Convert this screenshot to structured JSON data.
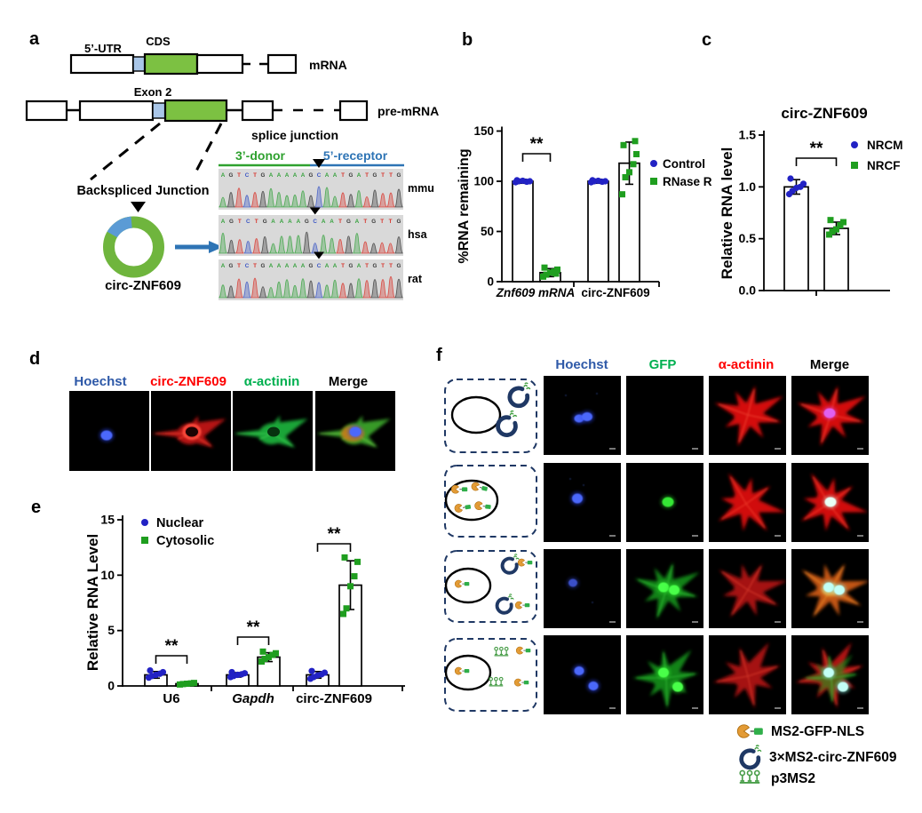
{
  "colors": {
    "accent_blue_point": "#2222c4",
    "accent_green_point": "#1f9e1f",
    "diagram_green": "#7cc142",
    "diagram_lightblue": "#a9c6e8",
    "ring_green": "#6fb53d",
    "ring_blue": "#5b9bd5",
    "arrow_blue": "#2e74b5",
    "hoechst_blue": "#2e59a8",
    "gfp_green": "#00b050",
    "red_channel": "#fe0000",
    "navy_schematic": "#1f3864"
  },
  "panels": {
    "a": {
      "label": "a",
      "mrna_track": {
        "utr": "5’-UTR",
        "cds": "CDS",
        "name": "mRNA"
      },
      "pre_mrna_track": {
        "exon": "Exon 2",
        "name": "pre-mRNA"
      },
      "backspliced": "Backspliced Junction",
      "circle": "circ-ZNF609",
      "chromatogram": {
        "title": "splice junction",
        "donor": "3’-donor",
        "receptor": "5’-receptor",
        "rows": [
          {
            "species": "mmu",
            "left": "AGTCTGAAAAAG",
            "right": "CAATGATGTTG"
          },
          {
            "species": "hsa",
            "left": "AGTCTGAAAAG",
            "right": "CAATGATGTTG"
          },
          {
            "species": "rat",
            "left": "AGTCTGAAAAAG",
            "right": "CAATGATGTTG"
          }
        ],
        "base_colors": {
          "A": "#35a13c",
          "C": "#3a55c4",
          "G": "#3a3a3a",
          "T": "#d8342c"
        }
      }
    },
    "b": {
      "label": "b"
    },
    "c": {
      "label": "c",
      "title": "circ-ZNF609"
    },
    "d": {
      "label": "d",
      "headers": [
        {
          "text": "Hoechst",
          "color": "#2e59a8"
        },
        {
          "text": "circ-ZNF609",
          "color": "#fe0000"
        },
        {
          "text": "α-actinin",
          "color": "#00b050"
        },
        {
          "text": "Merge",
          "color": "#000000"
        }
      ]
    },
    "e": {
      "label": "e"
    },
    "f": {
      "label": "f",
      "headers": [
        {
          "text": "Hoechst",
          "color": "#2e59a8"
        },
        {
          "text": "GFP",
          "color": "#00b050"
        },
        {
          "text": "α-actinin",
          "color": "#fe0000"
        },
        {
          "text": "Merge",
          "color": "#000000"
        }
      ],
      "legend": [
        {
          "icon": "ms2-gfp-nls-icon",
          "text": "MS2-GFP-NLS"
        },
        {
          "icon": "3xms2-circ-znf609-icon",
          "text": "3×MS2-circ-ZNF609"
        },
        {
          "icon": "p3ms2-icon",
          "text": "p3MS2"
        }
      ]
    }
  },
  "chart_data": [
    {
      "id": "b",
      "type": "bar",
      "ylabel": "%RNA remaining",
      "ylim": [
        0,
        150
      ],
      "yticks": [
        "0",
        "50",
        "100",
        "150"
      ],
      "categories": [
        "Znf609 mRNA",
        "circ-ZNF609"
      ],
      "italics": [
        true,
        false
      ],
      "series": [
        {
          "name": "Control",
          "color": "#2222c4",
          "marker": "circle",
          "values": [
            100,
            100
          ]
        },
        {
          "name": "RNase R",
          "color": "#1f9e1f",
          "marker": "square",
          "values": [
            9,
            118
          ]
        }
      ],
      "points": {
        "Control": [
          [
            99,
            100,
            100.5,
            99.5,
            100,
            101
          ],
          [
            99,
            100,
            100.5,
            99.5,
            100,
            101
          ]
        ],
        "RNase R": [
          [
            5,
            7,
            9,
            10,
            12,
            14,
            8
          ],
          [
            87,
            104,
            109,
            117,
            127,
            136,
            140
          ]
        ]
      },
      "errors": {
        "Control": [
          [
            100,
            2
          ],
          [
            100,
            2
          ]
        ],
        "RNase R": [
          [
            9,
            4
          ],
          [
            118,
            21
          ]
        ]
      },
      "sig": [
        {
          "group": 0,
          "label": "**"
        }
      ]
    },
    {
      "id": "c",
      "type": "bar",
      "title": "circ-ZNF609",
      "ylabel": "Relative RNA level",
      "ylim": [
        0,
        1.5
      ],
      "yticks": [
        "0.0",
        "0.5",
        "1.0",
        "1.5"
      ],
      "categories": [],
      "series": [
        {
          "name": "NRCM",
          "color": "#2222c4",
          "marker": "circle",
          "values": [
            1.0
          ]
        },
        {
          "name": "NRCF",
          "color": "#1f9e1f",
          "marker": "square",
          "values": [
            0.6
          ]
        }
      ],
      "points": {
        "NRCM": [
          [
            0.93,
            0.96,
            0.99,
            1.0,
            1.03,
            1.08
          ]
        ],
        "NRCF": [
          [
            0.54,
            0.57,
            0.59,
            0.63,
            0.66,
            0.68
          ]
        ]
      },
      "errors": {
        "NRCM": [
          [
            1.0,
            0.07
          ]
        ],
        "NRCF": [
          [
            0.6,
            0.06
          ]
        ]
      },
      "sig": [
        {
          "group": 0,
          "label": "**"
        }
      ]
    },
    {
      "id": "e",
      "type": "bar",
      "ylabel": "Relative RNA Level",
      "ylim": [
        0,
        15
      ],
      "yticks": [
        "0",
        "5",
        "10",
        "15"
      ],
      "categories": [
        "U6",
        "Gapdh",
        "circ-ZNF609"
      ],
      "italics": [
        false,
        true,
        false
      ],
      "series": [
        {
          "name": "Nuclear",
          "color": "#2222c4",
          "marker": "circle",
          "values": [
            1.0,
            1.0,
            1.0
          ]
        },
        {
          "name": "Cytosolic",
          "color": "#1f9e1f",
          "marker": "square",
          "values": [
            0.2,
            2.6,
            9.1
          ]
        }
      ],
      "points": {
        "Nuclear": [
          [
            0.75,
            0.9,
            1.0,
            1.1,
            1.25,
            1.4
          ],
          [
            0.8,
            0.9,
            1.0,
            1.05,
            1.15,
            1.25
          ],
          [
            0.65,
            0.8,
            0.95,
            1.05,
            1.2,
            1.35
          ]
        ],
        "Cytosolic": [
          [
            0.13,
            0.17,
            0.2,
            0.23,
            0.27
          ],
          [
            2.2,
            2.45,
            2.6,
            2.8,
            2.95,
            3.1
          ],
          [
            6.5,
            7.0,
            9.0,
            9.9,
            11.2,
            11.6
          ]
        ]
      },
      "errors": {
        "Nuclear": [
          [
            1.0,
            0.3
          ],
          [
            1.0,
            0.2
          ],
          [
            1.0,
            0.3
          ]
        ],
        "Cytosolic": [
          [
            0.2,
            0.06
          ],
          [
            2.6,
            0.4
          ],
          [
            9.1,
            2.2
          ]
        ]
      },
      "sig": [
        {
          "group": 0,
          "label": "**"
        },
        {
          "group": 1,
          "label": "**"
        },
        {
          "group": 2,
          "label": "**"
        }
      ]
    }
  ]
}
